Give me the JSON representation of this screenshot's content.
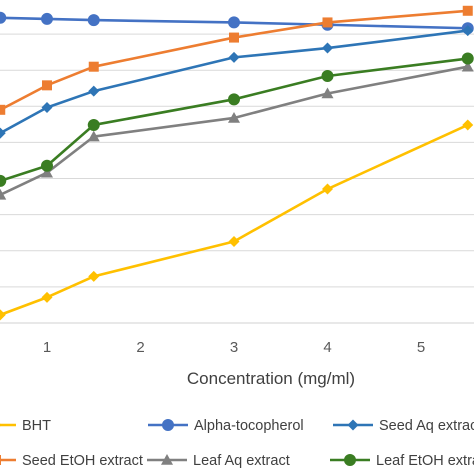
{
  "chart_data": {
    "type": "line",
    "title": "",
    "xlabel": "Concentration (mg/ml)",
    "ylabel": "",
    "x_ticks": [
      "1",
      "2",
      "3",
      "4",
      "5"
    ],
    "xlim": [
      0.55,
      5.5
    ],
    "grid": "horizontal",
    "legend_position": "bottom",
    "series": [
      {
        "name": "BHT",
        "color": "#FFC000",
        "marker": "diamond",
        "x": [
          0.5,
          1,
          1.5,
          3,
          4,
          5.5
        ],
        "y": [
          0.7,
          2.2,
          4.0,
          7.0,
          11.5,
          17.0
        ]
      },
      {
        "name": "Alpha-tocopherol",
        "color": "#4472C4",
        "marker": "circle",
        "x": [
          0.5,
          1,
          1.5,
          3,
          4,
          5.5
        ],
        "y": [
          26.2,
          26.1,
          26.0,
          25.8,
          25.6,
          25.3
        ]
      },
      {
        "name": "Seed Aq extract",
        "color": "#2E75B6",
        "marker": "diamond",
        "x": [
          0.5,
          1,
          1.5,
          3,
          4,
          5.5
        ],
        "y": [
          16.3,
          18.5,
          19.9,
          22.8,
          23.6,
          25.1
        ]
      },
      {
        "name": "Seed EtOH extract",
        "color": "#ED7D31",
        "marker": "square",
        "x": [
          0.5,
          1,
          1.5,
          3,
          4,
          5.5
        ],
        "y": [
          18.3,
          20.4,
          22.0,
          24.5,
          25.8,
          26.8
        ]
      },
      {
        "name": "Leaf Aq extract",
        "color": "#808080",
        "marker": "triangle",
        "x": [
          0.5,
          1,
          1.5,
          3,
          4,
          5.5
        ],
        "y": [
          11.0,
          12.9,
          16.0,
          17.6,
          19.7,
          22.0
        ]
      },
      {
        "name": "Leaf EtOH extract",
        "color": "#3A7D22",
        "marker": "circle",
        "x": [
          0.5,
          1,
          1.5,
          3,
          4,
          5.5
        ],
        "y": [
          12.2,
          13.5,
          17.0,
          19.2,
          21.2,
          22.7
        ]
      }
    ],
    "legend_rows": [
      [
        {
          "label": "BHT",
          "series": 0
        },
        {
          "label": "Alpha-tocopherol",
          "series": 1
        },
        {
          "label": "Seed Aq extract",
          "series": 2
        }
      ],
      [
        {
          "label": "Seed EtOH extract",
          "series": 3
        },
        {
          "label": "Leaf Aq extract",
          "series": 4
        },
        {
          "label": "Leaf EtOH extract",
          "series": 5
        }
      ]
    ],
    "ylim": [
      0,
      28
    ]
  }
}
